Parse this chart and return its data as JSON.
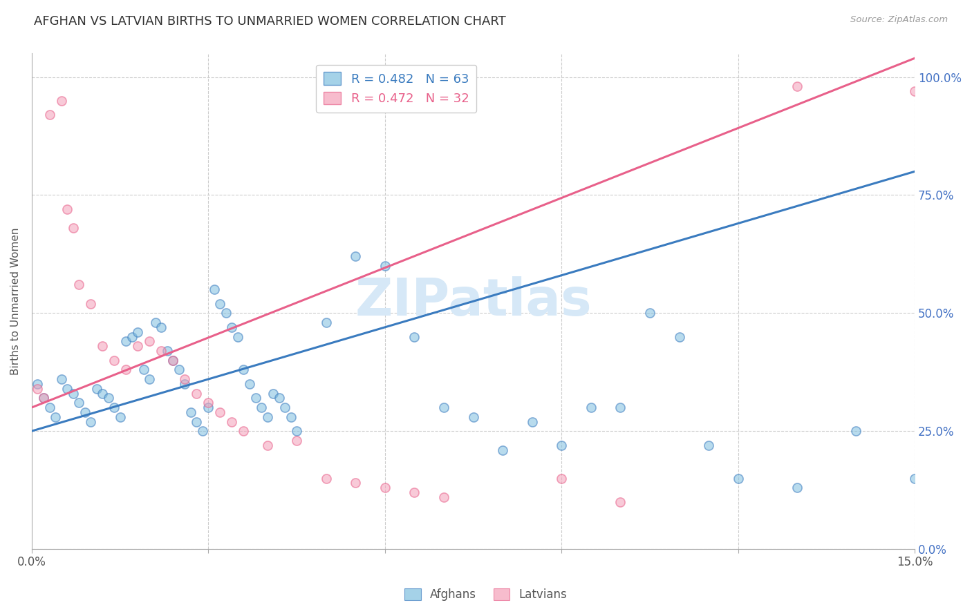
{
  "title": "AFGHAN VS LATVIAN BIRTHS TO UNMARRIED WOMEN CORRELATION CHART",
  "source": "Source: ZipAtlas.com",
  "ylabel": "Births to Unmarried Women",
  "xlim": [
    0.0,
    0.15
  ],
  "ylim": [
    0.0,
    1.05
  ],
  "ytick_labels": [
    "0.0%",
    "25.0%",
    "50.0%",
    "75.0%",
    "100.0%"
  ],
  "ytick_vals": [
    0.0,
    0.25,
    0.5,
    0.75,
    1.0
  ],
  "afghan_color": "#7fbfdf",
  "latvian_color": "#f4a0b8",
  "afghan_line_color": "#3a7bbf",
  "latvian_line_color": "#e8608a",
  "legend_afghan_R": "R = 0.482",
  "legend_afghan_N": "N = 63",
  "legend_latvian_R": "R = 0.472",
  "legend_latvian_N": "N = 32",
  "watermark": "ZIPatlas",
  "watermark_color": "#d6e8f7",
  "grid_color": "#cccccc",
  "title_color": "#333333",
  "axis_label_color": "#4472c4",
  "afghan_scatter_x": [
    0.001,
    0.002,
    0.003,
    0.004,
    0.005,
    0.006,
    0.007,
    0.008,
    0.009,
    0.01,
    0.011,
    0.012,
    0.013,
    0.014,
    0.015,
    0.016,
    0.017,
    0.018,
    0.019,
    0.02,
    0.021,
    0.022,
    0.023,
    0.024,
    0.025,
    0.026,
    0.027,
    0.028,
    0.029,
    0.03,
    0.031,
    0.032,
    0.033,
    0.034,
    0.035,
    0.036,
    0.037,
    0.038,
    0.039,
    0.04,
    0.041,
    0.042,
    0.043,
    0.044,
    0.045,
    0.05,
    0.055,
    0.06,
    0.065,
    0.07,
    0.075,
    0.08,
    0.085,
    0.09,
    0.095,
    0.1,
    0.105,
    0.11,
    0.115,
    0.12,
    0.13,
    0.14,
    0.15
  ],
  "afghan_scatter_y": [
    0.35,
    0.32,
    0.3,
    0.28,
    0.36,
    0.34,
    0.33,
    0.31,
    0.29,
    0.27,
    0.34,
    0.33,
    0.32,
    0.3,
    0.28,
    0.44,
    0.45,
    0.46,
    0.38,
    0.36,
    0.48,
    0.47,
    0.42,
    0.4,
    0.38,
    0.35,
    0.29,
    0.27,
    0.25,
    0.3,
    0.55,
    0.52,
    0.5,
    0.47,
    0.45,
    0.38,
    0.35,
    0.32,
    0.3,
    0.28,
    0.33,
    0.32,
    0.3,
    0.28,
    0.25,
    0.48,
    0.62,
    0.6,
    0.45,
    0.3,
    0.28,
    0.21,
    0.27,
    0.22,
    0.3,
    0.3,
    0.5,
    0.45,
    0.22,
    0.15,
    0.13,
    0.25,
    0.15
  ],
  "latvian_scatter_x": [
    0.001,
    0.002,
    0.003,
    0.005,
    0.006,
    0.007,
    0.008,
    0.01,
    0.012,
    0.014,
    0.016,
    0.018,
    0.02,
    0.022,
    0.024,
    0.026,
    0.028,
    0.03,
    0.032,
    0.034,
    0.036,
    0.04,
    0.045,
    0.05,
    0.055,
    0.06,
    0.065,
    0.07,
    0.09,
    0.1,
    0.13,
    0.15
  ],
  "latvian_scatter_y": [
    0.34,
    0.32,
    0.92,
    0.95,
    0.72,
    0.68,
    0.56,
    0.52,
    0.43,
    0.4,
    0.38,
    0.43,
    0.44,
    0.42,
    0.4,
    0.36,
    0.33,
    0.31,
    0.29,
    0.27,
    0.25,
    0.22,
    0.23,
    0.15,
    0.14,
    0.13,
    0.12,
    0.11,
    0.15,
    0.1,
    0.98,
    0.97
  ],
  "afghan_trendline_x": [
    0.0,
    0.15
  ],
  "afghan_trendline_y": [
    0.25,
    0.8
  ],
  "latvian_trendline_x": [
    0.0,
    0.15
  ],
  "latvian_trendline_y": [
    0.3,
    1.04
  ]
}
